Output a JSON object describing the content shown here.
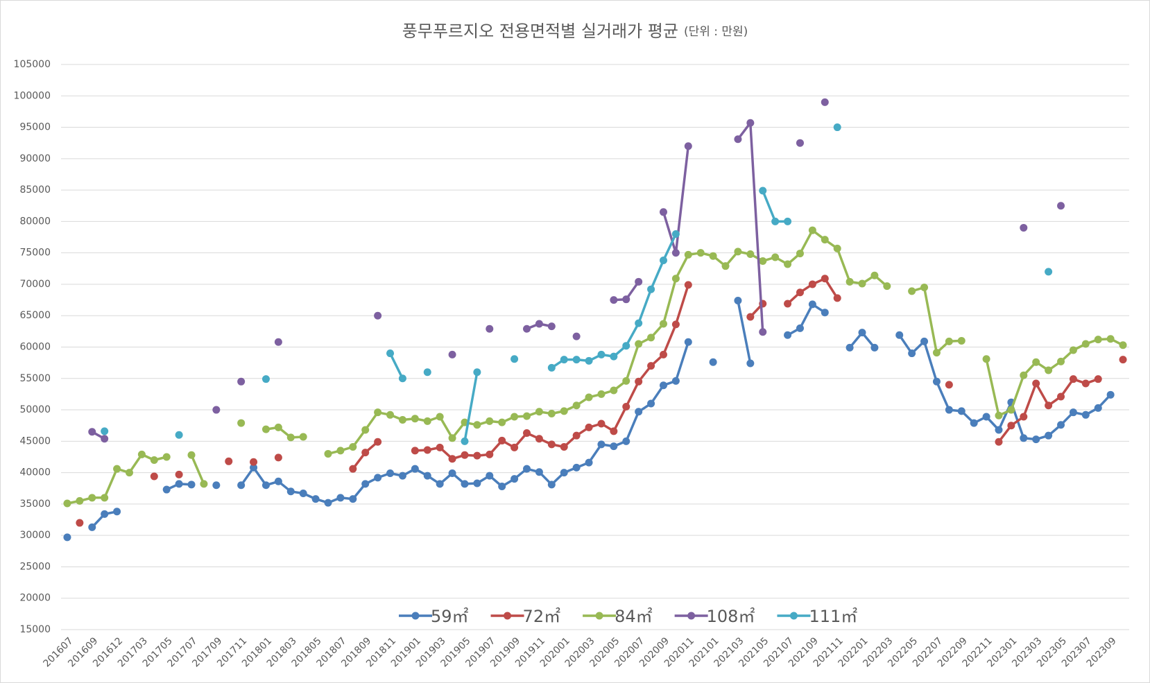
{
  "chart_data": {
    "type": "line",
    "title": "풍무푸르지오 전용면적별 실거래가 평균",
    "subtitle": "(단위 : 만원)",
    "categories": [
      "201607",
      null,
      "201609",
      null,
      "201612",
      null,
      "201703",
      null,
      "201705",
      null,
      "201707",
      null,
      "201709",
      null,
      "201711",
      null,
      "201801",
      null,
      "201803",
      null,
      "201805",
      null,
      "201807",
      null,
      "201809",
      null,
      "201811",
      null,
      "201901",
      null,
      "201903",
      null,
      "201905",
      null,
      "201907",
      null,
      "201909",
      null,
      "201911",
      null,
      "202001",
      null,
      "202003",
      null,
      "202005",
      null,
      "202007",
      null,
      "202009",
      null,
      "202011",
      null,
      "202101",
      null,
      "202103",
      null,
      "202105",
      null,
      "202107",
      null,
      "202109",
      null,
      "202111",
      null,
      "202201",
      null,
      "202203",
      null,
      "202205",
      null,
      "202207",
      null,
      "202209",
      null,
      "202211",
      null,
      "202301",
      null,
      "202303",
      null,
      "202305",
      null,
      "202307",
      null,
      "202309",
      null
    ],
    "series": [
      {
        "name": "59㎡",
        "color": "#4a7ebb",
        "values": [
          29700,
          null,
          31300,
          33400,
          33800,
          null,
          null,
          null,
          37300,
          38200,
          38100,
          null,
          38000,
          null,
          38000,
          40800,
          38000,
          38600,
          37000,
          36700,
          35800,
          35200,
          36000,
          35800,
          38200,
          39200,
          39900,
          39500,
          40600,
          39500,
          38200,
          39900,
          38200,
          38300,
          39500,
          37800,
          39000,
          40600,
          40100,
          38100,
          40000,
          40800,
          41600,
          44500,
          44200,
          45000,
          49700,
          51000,
          53900,
          54600,
          60800,
          null,
          57600,
          null,
          67400,
          57400,
          null,
          null,
          61900,
          63000,
          66800,
          65500,
          null,
          59900,
          62300,
          59900,
          null,
          61900,
          59000,
          60900,
          54500,
          50000,
          49800,
          47900,
          48900,
          46800,
          51200,
          45500,
          45300,
          45900,
          47600,
          49600,
          49200,
          50300,
          52400,
          null
        ]
      },
      {
        "name": "72㎡",
        "color": "#be4b48",
        "values": [
          null,
          32000,
          null,
          null,
          null,
          null,
          null,
          39400,
          null,
          39700,
          null,
          null,
          null,
          41800,
          null,
          41700,
          null,
          42400,
          null,
          null,
          null,
          null,
          null,
          40600,
          43200,
          44900,
          null,
          null,
          43500,
          43600,
          44000,
          42200,
          42800,
          42700,
          42900,
          45100,
          44000,
          46300,
          45400,
          44500,
          44100,
          45900,
          47200,
          47800,
          46600,
          50500,
          54500,
          57000,
          58800,
          63600,
          69900,
          null,
          null,
          null,
          null,
          64800,
          66900,
          null,
          66900,
          68700,
          70000,
          70900,
          67800,
          null,
          null,
          null,
          null,
          null,
          null,
          null,
          null,
          54000,
          null,
          null,
          null,
          44900,
          47500,
          48900,
          54200,
          50700,
          52100,
          54900,
          54200,
          54900,
          null,
          58000
        ]
      },
      {
        "name": "84㎡",
        "color": "#98b954",
        "values": [
          35100,
          35500,
          36000,
          36000,
          40600,
          40000,
          42900,
          42000,
          42500,
          null,
          42800,
          38200,
          null,
          null,
          47900,
          null,
          46900,
          47200,
          45600,
          45700,
          null,
          43000,
          43500,
          44100,
          46800,
          49600,
          49200,
          48400,
          48600,
          48200,
          48900,
          45500,
          48000,
          47600,
          48200,
          48000,
          48900,
          49000,
          49700,
          49400,
          49800,
          50700,
          52000,
          52500,
          53100,
          54600,
          60500,
          61500,
          63700,
          70900,
          74700,
          75000,
          74500,
          72900,
          75200,
          74800,
          73700,
          74300,
          73200,
          74900,
          78600,
          77100,
          75700,
          70400,
          70100,
          71400,
          69700,
          null,
          68900,
          69500,
          59100,
          60900,
          61000,
          null,
          58100,
          49100,
          50000,
          55500,
          57600,
          56300,
          57700,
          59500,
          60500,
          61200,
          61300,
          60300
        ]
      },
      {
        "name": "108㎡",
        "color": "#7d60a0",
        "values": [
          null,
          null,
          46500,
          45400,
          null,
          null,
          null,
          null,
          null,
          null,
          null,
          null,
          50000,
          null,
          54500,
          null,
          null,
          60800,
          null,
          null,
          null,
          null,
          null,
          null,
          null,
          65000,
          null,
          null,
          null,
          null,
          null,
          58800,
          null,
          null,
          62900,
          null,
          null,
          62900,
          63700,
          63300,
          null,
          61700,
          null,
          null,
          67500,
          67600,
          70400,
          null,
          81500,
          75000,
          92000,
          null,
          null,
          null,
          93100,
          95700,
          62400,
          null,
          null,
          92500,
          null,
          99000,
          null,
          null,
          null,
          null,
          null,
          null,
          null,
          null,
          null,
          null,
          null,
          null,
          null,
          null,
          null,
          79000,
          null,
          null,
          82500,
          null,
          null,
          null,
          null,
          null
        ]
      },
      {
        "name": "111㎡",
        "color": "#46aac5",
        "values": [
          null,
          null,
          null,
          46600,
          null,
          null,
          null,
          null,
          null,
          46000,
          null,
          null,
          null,
          null,
          null,
          null,
          54900,
          null,
          null,
          null,
          null,
          null,
          null,
          null,
          null,
          null,
          59000,
          55000,
          null,
          56000,
          null,
          null,
          45000,
          56000,
          null,
          null,
          58100,
          null,
          null,
          56700,
          58000,
          58000,
          57800,
          58800,
          58500,
          60200,
          63800,
          69200,
          73800,
          78000,
          null,
          null,
          null,
          null,
          null,
          null,
          84900,
          80000,
          80000,
          null,
          null,
          null,
          95000,
          null,
          null,
          null,
          null,
          null,
          null,
          null,
          null,
          null,
          null,
          null,
          null,
          null,
          null,
          null,
          null,
          72000,
          null,
          null,
          null,
          null,
          null,
          null
        ]
      }
    ],
    "ylim": [
      15000,
      105000
    ],
    "yticks": [
      15000,
      20000,
      25000,
      30000,
      35000,
      40000,
      45000,
      50000,
      55000,
      60000,
      65000,
      70000,
      75000,
      80000,
      85000,
      90000,
      95000,
      100000,
      105000
    ],
    "grid": true,
    "legend": "bottom"
  }
}
